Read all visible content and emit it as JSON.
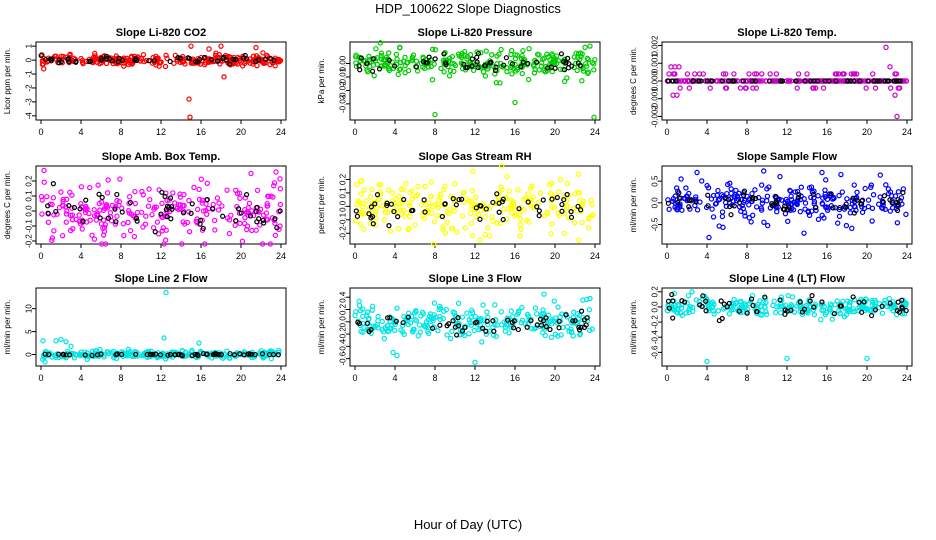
{
  "main_title": "HDP_100622  Slope Diagnostics",
  "x_caption": "Hour of Day (UTC)",
  "colors": {
    "reference": "#000000"
  },
  "chart_data": [
    {
      "type": "scatter",
      "title": "Slope Li-820 CO2",
      "ylabel": "Licor ppm per min.",
      "color": "#ff0000",
      "xlim": [
        -0.5,
        24.5
      ],
      "ylim": [
        -4.3,
        1.3
      ],
      "xticks": [
        0,
        4,
        8,
        12,
        16,
        20,
        24
      ],
      "xtick_labels": [
        "0",
        "4",
        "8",
        "12",
        "16",
        "20",
        "24"
      ],
      "yticks": [
        -4,
        -3,
        -2,
        -1,
        0,
        1
      ],
      "ytick_labels": [
        "-4",
        "-3",
        "-2",
        "-1",
        "0",
        "1"
      ],
      "main_spread": 0.18,
      "ref_spread": 0.12,
      "baseline": 0,
      "outliers": [
        [
          14.8,
          -2.8
        ],
        [
          14.9,
          -4.1
        ],
        [
          15.0,
          1.0
        ],
        [
          16.8,
          0.8
        ],
        [
          17.5,
          0.5
        ],
        [
          18.0,
          1.0
        ],
        [
          18.3,
          -1.2
        ],
        [
          21.5,
          0.9
        ]
      ]
    },
    {
      "type": "scatter",
      "title": "Slope Li-820 Pressure",
      "ylabel": "kPa per min.",
      "color": "#00cc00",
      "xlim": [
        -0.5,
        24.5
      ],
      "ylim": [
        -0.042,
        0.016
      ],
      "xticks": [
        0,
        4,
        8,
        12,
        16,
        20,
        24
      ],
      "xtick_labels": [
        "0",
        "4",
        "8",
        "12",
        "16",
        "20",
        "24"
      ],
      "yticks": [
        -0.03,
        -0.02,
        -0.01,
        0.0
      ],
      "ytick_labels": [
        "-0.03",
        "-0.02",
        "-0.01",
        "0.00"
      ],
      "main_spread": 0.005,
      "ref_spread": 0.003,
      "baseline": 0,
      "outliers": [
        [
          8.0,
          -0.038
        ],
        [
          16.0,
          -0.029
        ],
        [
          23.9,
          -0.04
        ],
        [
          23.5,
          0.013
        ],
        [
          23.0,
          0.012
        ]
      ]
    },
    {
      "type": "scatter",
      "title": "Slope Li-820 Temp.",
      "ylabel": "degrees C per min.",
      "color": "#cc00cc",
      "xlim": [
        -0.5,
        24.5
      ],
      "ylim": [
        -0.0022,
        0.0022
      ],
      "xticks": [
        0,
        4,
        8,
        12,
        16,
        20,
        24
      ],
      "xtick_labels": [
        "0",
        "4",
        "8",
        "12",
        "16",
        "20",
        "24"
      ],
      "yticks": [
        -0.002,
        -0.001,
        0.0,
        0.001,
        0.002
      ],
      "ytick_labels": [
        "-0.002",
        "-0.001",
        "0.000",
        "0.001",
        "0.002"
      ],
      "main_spread": 0,
      "ref_spread": 0,
      "baseline": 0,
      "quantized": true,
      "quantized_levels": [
        -0.0004,
        0.0,
        0.0004
      ],
      "outliers": [
        [
          0.4,
          0.0008
        ],
        [
          0.8,
          0.0008
        ],
        [
          1.2,
          0.0008
        ],
        [
          0.6,
          -0.0008
        ],
        [
          1.0,
          -0.0008
        ],
        [
          21.9,
          0.0019
        ],
        [
          22.3,
          0.0008
        ],
        [
          22.8,
          -0.0008
        ],
        [
          23.0,
          -0.002
        ]
      ]
    },
    {
      "type": "scatter",
      "title": "Slope Amb. Box Temp.",
      "ylabel": "degrees C per min.",
      "color": "#ff00ff",
      "xlim": [
        -0.5,
        24.5
      ],
      "ylim": [
        -0.22,
        0.3
      ],
      "xticks": [
        0,
        4,
        8,
        12,
        16,
        20,
        24
      ],
      "xtick_labels": [
        "0",
        "4",
        "8",
        "12",
        "16",
        "20",
        "24"
      ],
      "yticks": [
        -0.2,
        -0.1,
        0.0,
        0.1,
        0.2
      ],
      "ytick_labels": [
        "-0.2",
        "-0.1",
        "0.0",
        "0.1",
        "0.2"
      ],
      "main_spread": 0.09,
      "ref_spread": 0.08,
      "baseline": 0,
      "outliers": [
        [
          0.3,
          0.27
        ],
        [
          23.5,
          0.26
        ],
        [
          21.0,
          0.25
        ]
      ]
    },
    {
      "type": "scatter",
      "title": "Slope Gas Stream RH",
      "ylabel": "percent per min.",
      "color": "#ffff00",
      "xlim": [
        -0.5,
        24.5
      ],
      "ylim": [
        -0.28,
        0.3
      ],
      "xticks": [
        0,
        4,
        8,
        12,
        16,
        20,
        24
      ],
      "xtick_labels": [
        "0",
        "4",
        "8",
        "12",
        "16",
        "20",
        "24"
      ],
      "yticks": [
        -0.2,
        -0.1,
        0.0,
        0.1,
        0.2
      ],
      "ytick_labels": [
        "-0.2",
        "-0.1",
        "0.0",
        "0.1",
        "0.2"
      ],
      "main_spread": 0.1,
      "ref_spread": 0.06,
      "baseline": 0,
      "outliers": [
        [
          11.8,
          0.26
        ],
        [
          12.5,
          -0.25
        ]
      ]
    },
    {
      "type": "scatter",
      "title": "Slope Sample Flow",
      "ylabel": "ml/min per min.",
      "color": "#0000ff",
      "xlim": [
        -0.5,
        24.5
      ],
      "ylim": [
        -0.95,
        0.85
      ],
      "xticks": [
        0,
        4,
        8,
        12,
        16,
        20,
        24
      ],
      "xtick_labels": [
        "0",
        "4",
        "8",
        "12",
        "16",
        "20",
        "24"
      ],
      "yticks": [
        -0.5,
        0.0,
        0.5
      ],
      "ytick_labels": [
        "-0.5",
        "0.0",
        "0.5"
      ],
      "main_spread": 0.22,
      "ref_spread": 0.12,
      "baseline": 0,
      "outliers": [
        [
          4.2,
          -0.8
        ],
        [
          3.0,
          0.7
        ],
        [
          15.5,
          0.7
        ],
        [
          13.7,
          -0.7
        ]
      ]
    },
    {
      "type": "scatter",
      "title": "Slope Line 2 Flow",
      "ylabel": "ml/min per min.",
      "color": "#00e5e5",
      "xlim": [
        -0.5,
        24.5
      ],
      "ylim": [
        -2.5,
        14.5
      ],
      "xticks": [
        0,
        4,
        8,
        12,
        16,
        20,
        24
      ],
      "xtick_labels": [
        "0",
        "4",
        "8",
        "12",
        "16",
        "20",
        "24"
      ],
      "yticks": [
        0,
        5,
        10
      ],
      "ytick_labels": [
        "0",
        "5",
        "10"
      ],
      "main_spread": 0.4,
      "ref_spread": 0.1,
      "baseline": 0,
      "outliers": [
        [
          12.5,
          13.5
        ],
        [
          12.3,
          3.6
        ],
        [
          0.2,
          3.0
        ],
        [
          0.4,
          -1.6
        ],
        [
          1.5,
          3.0
        ],
        [
          2.0,
          3.3
        ],
        [
          2.5,
          2.8
        ],
        [
          3.0,
          1.8
        ],
        [
          15.8,
          2.5
        ]
      ]
    },
    {
      "type": "scatter",
      "title": "Slope Line 3 Flow",
      "ylabel": "ml/min per min.",
      "color": "#00e5e5",
      "xlim": [
        -0.5,
        24.5
      ],
      "ylim": [
        -0.72,
        0.55
      ],
      "xticks": [
        0,
        4,
        8,
        12,
        16,
        20,
        24
      ],
      "xtick_labels": [
        "0",
        "4",
        "8",
        "12",
        "16",
        "20",
        "24"
      ],
      "yticks": [
        -0.6,
        -0.4,
        -0.2,
        0.0,
        0.2,
        0.4
      ],
      "ytick_labels": [
        "-0.6",
        "-0.4",
        "-0.2",
        "0.0",
        "0.2",
        "0.4"
      ],
      "main_spread": 0.14,
      "ref_spread": 0.1,
      "baseline": 0,
      "outliers": [
        [
          12.0,
          -0.66
        ],
        [
          18.9,
          0.45
        ],
        [
          3.8,
          -0.5
        ],
        [
          4.2,
          -0.55
        ],
        [
          23.5,
          0.38
        ]
      ]
    },
    {
      "type": "scatter",
      "title": "Slope Line 4 (LT) Flow",
      "ylabel": "ml/min per min.",
      "color": "#00e5e5",
      "xlim": [
        -0.5,
        24.5
      ],
      "ylim": [
        -0.78,
        0.25
      ],
      "xticks": [
        0,
        4,
        8,
        12,
        16,
        20,
        24
      ],
      "xtick_labels": [
        "0",
        "4",
        "8",
        "12",
        "16",
        "20",
        "24"
      ],
      "yticks": [
        -0.6,
        -0.4,
        -0.2,
        0.0,
        0.2
      ],
      "ytick_labels": [
        "-0.6",
        "-0.4",
        "-0.2",
        "0.0",
        "0.2"
      ],
      "main_spread": 0.06,
      "ref_spread": 0.08,
      "baseline": 0,
      "outliers": [
        [
          4.0,
          -0.72
        ],
        [
          12.0,
          -0.68
        ],
        [
          20.0,
          -0.68
        ],
        [
          2.5,
          0.2
        ]
      ]
    }
  ]
}
